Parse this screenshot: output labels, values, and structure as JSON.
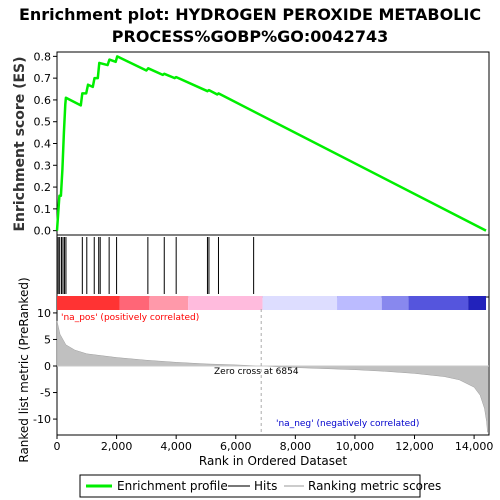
{
  "chart_data": {
    "type": "line",
    "title_line1": "Enrichment plot: HYDROGEN PEROXIDE METABOLIC",
    "title_line2": "PROCESS%GOBP%GO:0042743",
    "es_ylabel": "Enrichment score (ES)",
    "metric_ylabel": "Ranked list metric (PreRanked)",
    "xlabel": "Rank in Ordered Dataset",
    "xlim": [
      0,
      14500
    ],
    "x_ticks": [
      0,
      2000,
      4000,
      6000,
      8000,
      10000,
      12000,
      14000
    ],
    "x_tick_labels": [
      "0",
      "2,000",
      "4,000",
      "6,000",
      "8,000",
      "10,000",
      "12,000",
      "14,000"
    ],
    "es_ylim": [
      -0.02,
      0.82
    ],
    "es_ticks": [
      0.0,
      0.1,
      0.2,
      0.3,
      0.4,
      0.5,
      0.6,
      0.7,
      0.8
    ],
    "es_tick_labels": [
      "0.0",
      "0.1",
      "0.2",
      "0.3",
      "0.4",
      "0.5",
      "0.6",
      "0.7",
      "0.8"
    ],
    "metric_ylim": [
      -13,
      13
    ],
    "metric_ticks": [
      10,
      5,
      0,
      -5,
      -10
    ],
    "metric_tick_labels": [
      "10",
      "5",
      "0",
      "-5",
      "-10"
    ],
    "enrichment_profile": {
      "name": "Enrichment profile",
      "color": "#00ee00",
      "x": [
        0,
        60,
        80,
        130,
        180,
        230,
        280,
        300,
        800,
        850,
        980,
        1040,
        1200,
        1260,
        1370,
        1420,
        1700,
        1760,
        1970,
        2020,
        3000,
        3060,
        3550,
        3600,
        3950,
        4000,
        5050,
        5100,
        5380,
        5420,
        14400
      ],
      "y": [
        0.0,
        0.12,
        0.16,
        0.16,
        0.28,
        0.45,
        0.58,
        0.61,
        0.575,
        0.63,
        0.63,
        0.67,
        0.66,
        0.7,
        0.7,
        0.77,
        0.76,
        0.785,
        0.775,
        0.8,
        0.735,
        0.745,
        0.715,
        0.72,
        0.7,
        0.705,
        0.64,
        0.645,
        0.625,
        0.63,
        0.0
      ]
    },
    "hits": [
      40,
      90,
      150,
      200,
      250,
      300,
      850,
      1000,
      1250,
      1400,
      1450,
      1750,
      2000,
      3050,
      3600,
      4000,
      5050,
      5100,
      5420,
      6600
    ],
    "metric_profile": {
      "x": [
        0,
        100,
        300,
        600,
        1000,
        2000,
        3000,
        4000,
        5000,
        6000,
        6854,
        8000,
        10000,
        11000,
        12000,
        13000,
        13500,
        14000,
        14200,
        14350,
        14420,
        14450
      ],
      "y": [
        8.5,
        6.0,
        4.0,
        3.0,
        2.3,
        1.6,
        1.1,
        0.7,
        0.4,
        0.2,
        0.0,
        -0.3,
        -0.7,
        -1.0,
        -1.4,
        -2.0,
        -2.6,
        -4.0,
        -5.5,
        -8.0,
        -10.5,
        -12.5
      ]
    },
    "color_bar": {
      "segments": [
        {
          "start": 0,
          "end": 2100,
          "color": "#ff3333"
        },
        {
          "start": 2100,
          "end": 3100,
          "color": "#ff6677"
        },
        {
          "start": 3100,
          "end": 4400,
          "color": "#ff99aa"
        },
        {
          "start": 4400,
          "end": 6900,
          "color": "#ffbbdd"
        },
        {
          "start": 6900,
          "end": 9400,
          "color": "#ddddff"
        },
        {
          "start": 9400,
          "end": 10900,
          "color": "#bbbbff"
        },
        {
          "start": 10900,
          "end": 11800,
          "color": "#8888ee"
        },
        {
          "start": 11800,
          "end": 13800,
          "color": "#5555dd"
        },
        {
          "start": 13800,
          "end": 14400,
          "color": "#2222bb"
        }
      ]
    },
    "annotations": {
      "pos_label": "'na_pos' (positively correlated)",
      "neg_label": "'na_neg' (negatively correlated)",
      "zero_cross": "Zero cross at 6854",
      "zero_cross_x": 6854
    },
    "legend": {
      "placement": "bottom",
      "items": [
        {
          "label": "Enrichment profile",
          "color": "#00ee00"
        },
        {
          "label": "Hits",
          "color": "#000000"
        },
        {
          "label": "Ranking metric scores",
          "color": "#cccccc"
        }
      ]
    },
    "colors": {
      "pos": "#ff0000",
      "neg": "#0000cc",
      "metric_fill": "#c0c0c0",
      "zero_line": "#aaaaaa"
    }
  }
}
